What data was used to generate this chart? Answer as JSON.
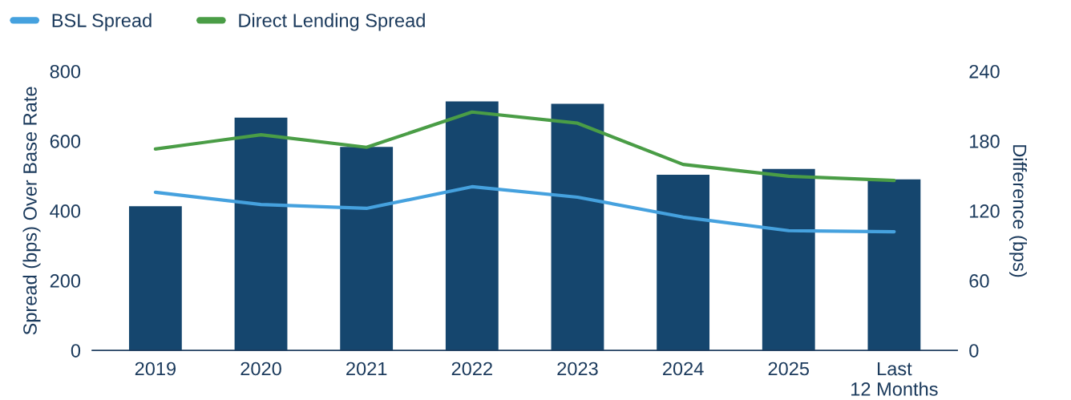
{
  "chart_data": {
    "type": "bar",
    "ylabel": "Spread (bps) Over Base Rate",
    "y2label": "Difference (bps)",
    "categories": [
      "2019",
      "2020",
      "2021",
      "2022",
      "2023",
      "2024",
      "2025",
      "Last\n12 Months"
    ],
    "series": [
      {
        "axis": "y2",
        "color": "#15466e",
        "values": [
          124,
          200,
          175,
          214,
          212,
          151,
          156,
          147
        ]
      },
      {
        "type": "line",
        "axis": "y",
        "name": "BSL Spread",
        "color": "#45a1de",
        "values": [
          453,
          418,
          407,
          469,
          439,
          382,
          343,
          340
        ]
      },
      {
        "type": "line",
        "axis": "y",
        "name": "Direct Lending Spread",
        "color": "#4a9d46",
        "values": [
          577,
          618,
          582,
          683,
          651,
          533,
          499,
          487
        ]
      }
    ],
    "ylim": [
      0,
      800
    ],
    "yticks": [
      0,
      200,
      400,
      600,
      800
    ],
    "y2lim": [
      0,
      240
    ],
    "y2ticks": [
      0,
      60,
      120,
      180,
      240
    ],
    "grid": false,
    "legend": "top left",
    "marker": "none",
    "line_style": "solid"
  }
}
